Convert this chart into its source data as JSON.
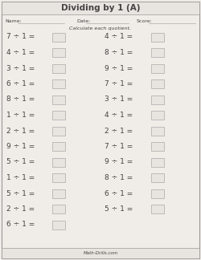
{
  "title": "Dividing by 1 (A)",
  "name_label": "Name:",
  "date_label": "Date:",
  "score_label": "Score:",
  "instruction": "Calculate each quotient.",
  "footer": "Math-Drills.com",
  "left_column": [
    "7 ÷ 1 =",
    "4 ÷ 1 =",
    "3 ÷ 1 =",
    "6 ÷ 1 =",
    "8 ÷ 1 =",
    "1 ÷ 1 =",
    "2 ÷ 1 =",
    "9 ÷ 1 =",
    "5 ÷ 1 =",
    "1 ÷ 1 =",
    "5 ÷ 1 =",
    "2 ÷ 1 =",
    "6 ÷ 1 ="
  ],
  "right_column": [
    "4 ÷ 1 =",
    "8 ÷ 1 =",
    "9 ÷ 1 =",
    "7 ÷ 1 =",
    "3 ÷ 1 =",
    "4 ÷ 1 =",
    "2 ÷ 1 =",
    "7 ÷ 1 =",
    "9 ÷ 1 =",
    "8 ÷ 1 =",
    "6 ÷ 1 =",
    "5 ÷ 1 ="
  ],
  "bg_color": "#f0ede8",
  "box_facecolor": "#e8e4df",
  "box_edgecolor": "#aaaaaa",
  "title_bg": "#e8e4df",
  "footer_bg": "#e8e4df",
  "border_color": "#999999",
  "text_color": "#444444",
  "font_size_title": 7.5,
  "font_size_label": 4.5,
  "font_size_instruction": 4.5,
  "font_size_problem": 6.5,
  "font_size_footer": 4.0
}
